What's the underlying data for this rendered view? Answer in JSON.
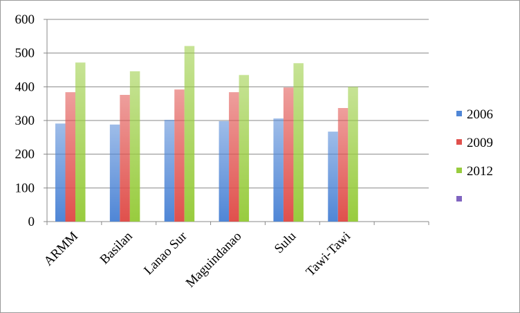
{
  "chart_data": {
    "type": "bar",
    "categories": [
      "ARMM",
      "Basilan",
      "Lanao Sur",
      "Maguindanao",
      "Sulu",
      "Tawi-Tawi",
      null
    ],
    "series": [
      {
        "name": "2006",
        "color": "#4f86d6",
        "values": [
          291,
          288,
          302,
          298,
          306,
          267,
          null
        ]
      },
      {
        "name": "2009",
        "color": "#e0504c",
        "values": [
          384,
          376,
          392,
          384,
          398,
          337,
          null
        ]
      },
      {
        "name": "2012",
        "color": "#98cc3e",
        "values": [
          472,
          446,
          521,
          435,
          470,
          400,
          null
        ]
      },
      {
        "name": null,
        "color": "#8064c0",
        "values": [
          null,
          null,
          null,
          null,
          null,
          null,
          null
        ]
      }
    ],
    "ylim": [
      0,
      600
    ],
    "yticks": [
      0,
      100,
      200,
      300,
      400,
      500,
      600
    ],
    "grid": true,
    "legend": "right"
  }
}
